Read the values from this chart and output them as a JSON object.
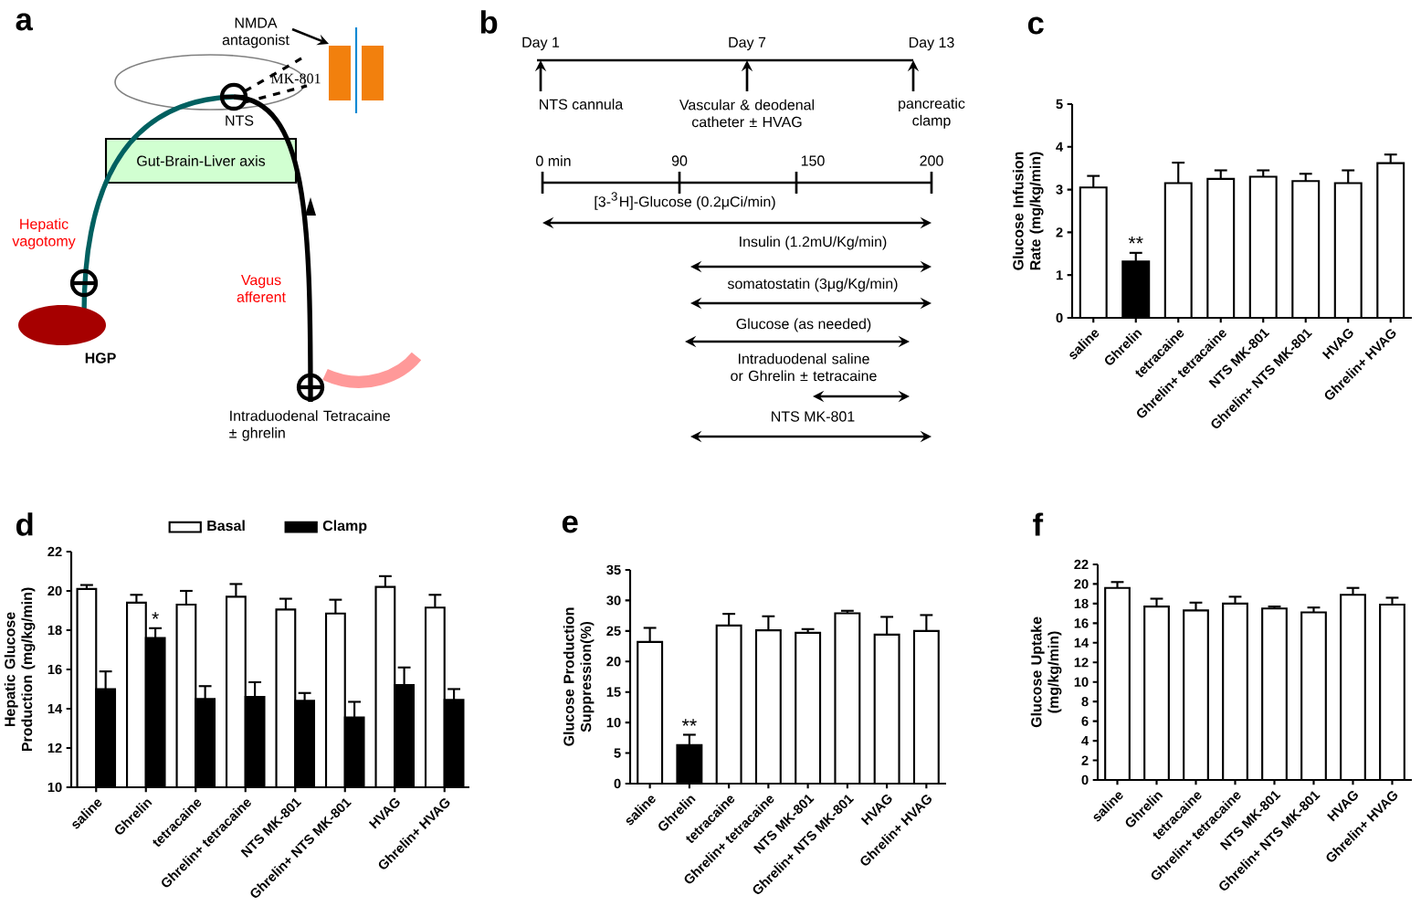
{
  "chart_data": [
    {
      "type": "other",
      "title": "a",
      "annotations": [
        "NMDA antagonist",
        "MK-801",
        "NTS",
        "Gut-Brain-Liver axis",
        "Hepatic vagotomy",
        "Vagus afferent",
        "HGP",
        "Intraduodenal Tetracaine ± ghrelin"
      ]
    },
    {
      "type": "other",
      "title": "b",
      "annotations": [
        "Day 1",
        "Day 7",
        "Day 13",
        "NTS cannula",
        "Vascular & deodenal catheter ± HVAG",
        "pancreatic clamp",
        "0 min",
        "90",
        "150",
        "200",
        "[3-$^{3}$H]-Glucose (0.2μCi/min)",
        "Insulin (1.2mU/Kg/min)",
        "somatostatin (3μg/Kg/min)",
        "Glucose (as needed)",
        "Intraduodenal saline or Ghrelin ± tetracaine",
        "NTS MK-801"
      ]
    },
    {
      "type": "bar",
      "title": "c",
      "ylabel": "Glucose Infusion Rate (mg/kg/min)",
      "categories": [
        "saline",
        "Ghrelin",
        "tetracaine",
        "Ghrelin+ tetracaine",
        "NTS MK-801",
        "Ghrelin+ NTS MK-801",
        "HVAG",
        "Ghrelin+ HVAG"
      ],
      "values": [
        3.05,
        1.32,
        3.15,
        3.25,
        3.3,
        3.2,
        3.15,
        3.62
      ],
      "errors": [
        0.27,
        0.2,
        0.48,
        0.2,
        0.15,
        0.17,
        0.3,
        0.2
      ],
      "colors": [
        "#ffffff",
        "#000000",
        "#ffffff",
        "#ffffff",
        "#ffffff",
        "#ffffff",
        "#ffffff",
        "#ffffff"
      ],
      "ylim": [
        0,
        5
      ],
      "yticks": [
        0,
        1,
        2,
        3,
        4,
        5
      ],
      "annotations": [
        {
          "text": "**",
          "x": "Ghrelin",
          "y": 1.55
        }
      ]
    },
    {
      "type": "bar",
      "title": "d",
      "ylabel": "Hepatic Glucose Production (mg/kg/min)",
      "categories": [
        "saline",
        "Ghrelin",
        "tetracaine",
        "Ghrelin+ tetracaine",
        "NTS MK-801",
        "Ghrelin+ NTS MK-801",
        "HVAG",
        "Ghrelin+ HVAG"
      ],
      "series": [
        {
          "name": "Basal",
          "color": "#ffffff",
          "values": [
            20.1,
            19.4,
            19.3,
            19.7,
            19.05,
            18.85,
            20.2,
            19.15
          ],
          "errors": [
            0.2,
            0.4,
            0.7,
            0.65,
            0.55,
            0.7,
            0.55,
            0.65
          ]
        },
        {
          "name": "Clamp",
          "color": "#000000",
          "values": [
            15.0,
            17.6,
            14.5,
            14.6,
            14.4,
            13.55,
            15.2,
            14.45
          ],
          "errors": [
            0.9,
            0.5,
            0.65,
            0.75,
            0.4,
            0.8,
            0.9,
            0.55
          ]
        }
      ],
      "ylim": [
        10,
        22
      ],
      "yticks": [
        10,
        12,
        14,
        16,
        18,
        20,
        22
      ],
      "legend": "top",
      "annotations": [
        {
          "text": "*",
          "x": "Ghrelin",
          "y": 18.15
        }
      ]
    },
    {
      "type": "bar",
      "title": "e",
      "ylabel": "Glucose Production Suppression(%)",
      "categories": [
        "saline",
        "Ghrelin",
        "tetracaine",
        "Ghrelin+ tetracaine",
        "NTS MK-801",
        "Ghrelin+ NTS MK-801",
        "HVAG",
        "Ghrelin+ HVAG"
      ],
      "values": [
        23.2,
        6.3,
        25.9,
        25.1,
        24.7,
        27.9,
        24.4,
        25.0
      ],
      "errors": [
        2.3,
        1.7,
        1.9,
        2.3,
        0.6,
        0.4,
        2.9,
        2.6
      ],
      "colors": [
        "#ffffff",
        "#000000",
        "#ffffff",
        "#ffffff",
        "#ffffff",
        "#ffffff",
        "#ffffff",
        "#ffffff"
      ],
      "ylim": [
        0,
        35
      ],
      "yticks": [
        0,
        5,
        10,
        15,
        20,
        25,
        30,
        35
      ],
      "annotations": [
        {
          "text": "**",
          "x": "Ghrelin",
          "y": 8.1
        }
      ]
    },
    {
      "type": "bar",
      "title": "f",
      "ylabel": "Glucose Uptake (mg/kg/min)",
      "categories": [
        "saline",
        "Ghrelin",
        "tetracaine",
        "Ghrelin+ tetracaine",
        "NTS MK-801",
        "Ghrelin+ NTS MK-801",
        "HVAG",
        "Ghrelin+ HVAG"
      ],
      "values": [
        19.6,
        17.7,
        17.3,
        18.0,
        17.5,
        17.1,
        18.9,
        17.9
      ],
      "errors": [
        0.6,
        0.8,
        0.8,
        0.7,
        0.2,
        0.5,
        0.7,
        0.7
      ],
      "color": "#ffffff",
      "ylim": [
        0,
        22
      ],
      "yticks": [
        0,
        2,
        4,
        6,
        8,
        10,
        12,
        14,
        16,
        18,
        20,
        22
      ]
    }
  ]
}
